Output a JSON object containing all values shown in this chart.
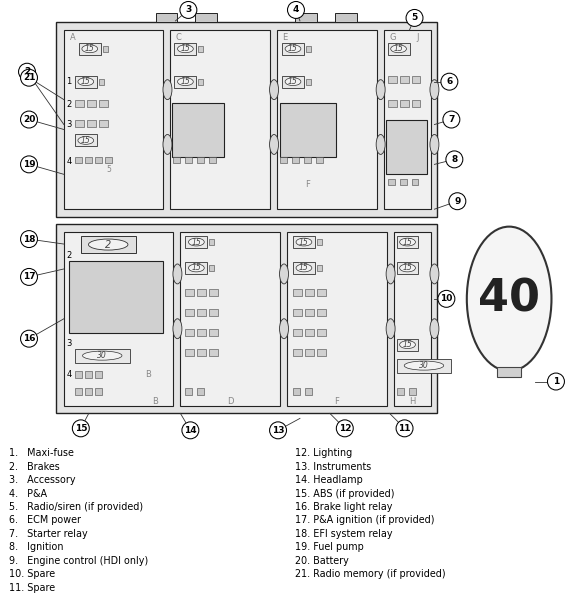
{
  "bg_color": "#ffffff",
  "legend_left": [
    "1.   Maxi-fuse",
    "2.   Brakes",
    "3.   Accessory",
    "4.   P&A",
    "5.   Radio/siren (if provided)",
    "6.   ECM power",
    "7.   Starter relay",
    "8.   Ignition",
    "9.   Engine control (HDI only)",
    "10. Spare",
    "11. Spare"
  ],
  "legend_right": [
    "12. Lighting",
    "13. Instruments",
    "14. Headlamp",
    "15. ABS (if provided)",
    "16. Brake light relay",
    "17. P&A ignition (if provided)",
    "18. EFI system relay",
    "19. Fuel pump",
    "20. Battery",
    "21. Radio memory (if provided)"
  ]
}
